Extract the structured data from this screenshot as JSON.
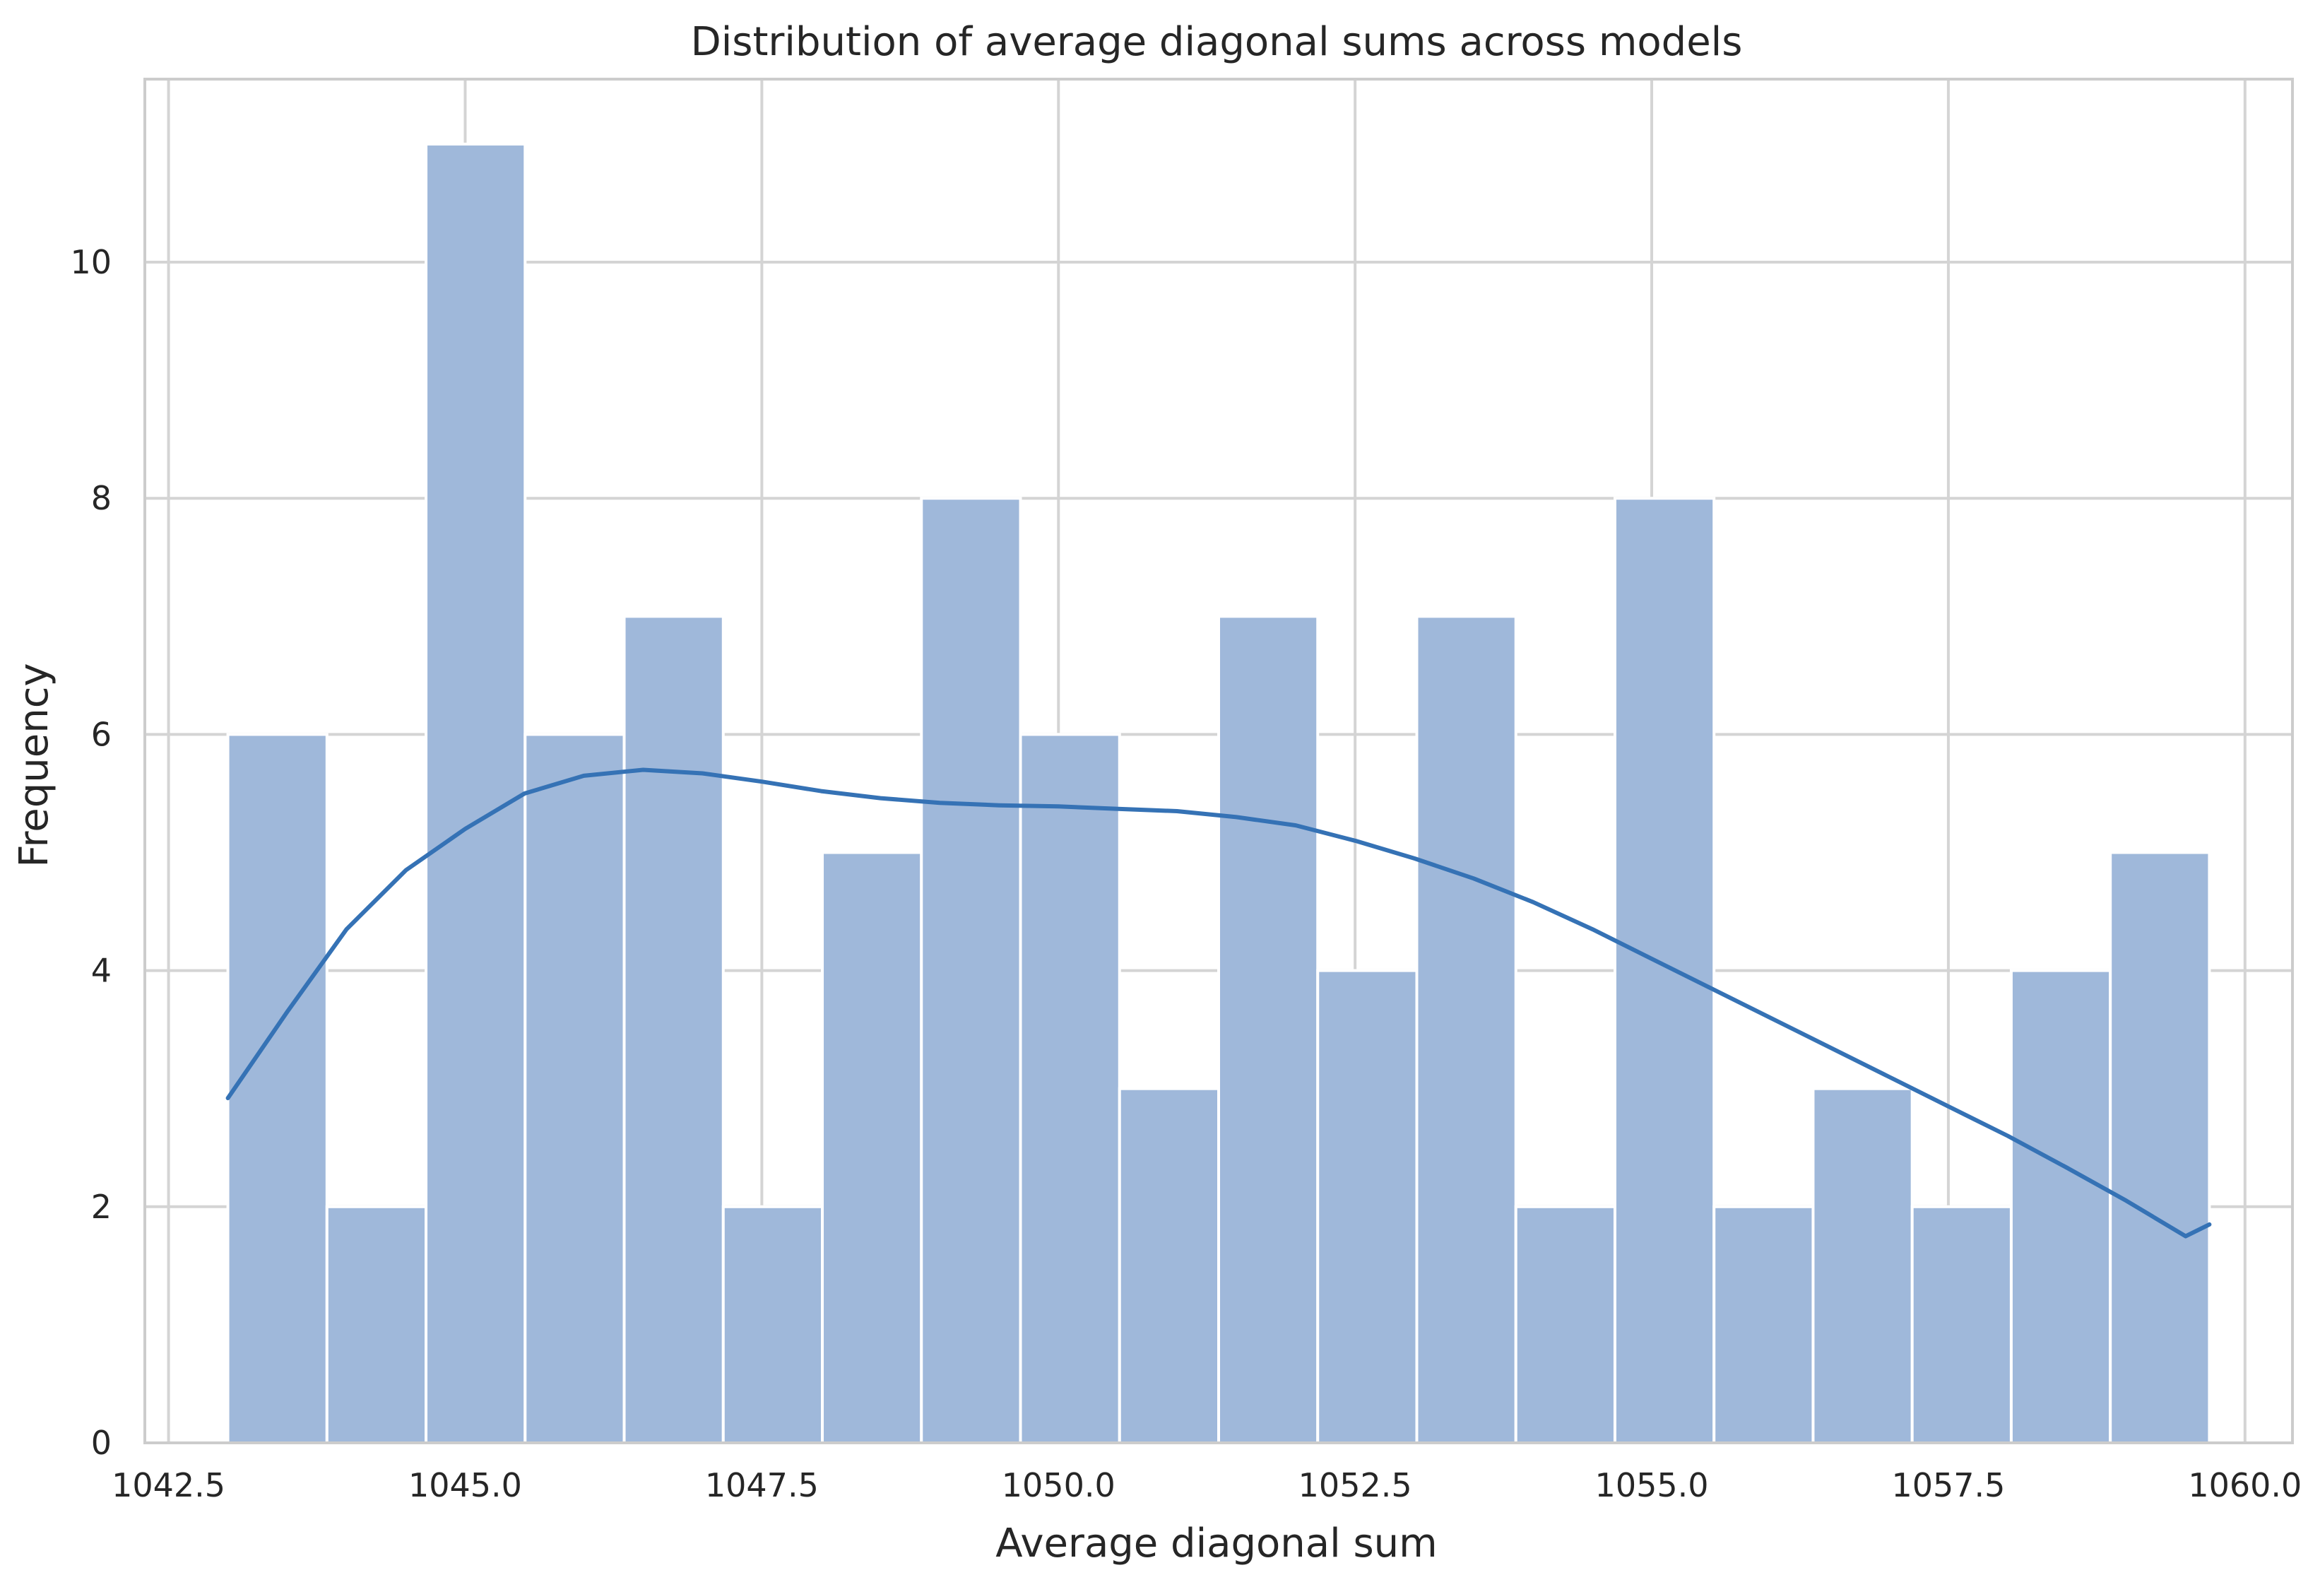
{
  "chart_data": {
    "type": "bar",
    "subtype": "histogram",
    "title": "Distribution of average diagonal sums across models",
    "xlabel": "Average diagonal sum",
    "ylabel": "Frequency",
    "xlim": [
      1042.3,
      1060.4
    ],
    "ylim": [
      0,
      11.55
    ],
    "xticks": [
      1042.5,
      1045.0,
      1047.5,
      1050.0,
      1052.5,
      1055.0,
      1057.5,
      1060.0
    ],
    "xtick_labels": [
      "1042.5",
      "1045.0",
      "1047.5",
      "1050.0",
      "1052.5",
      "1055.0",
      "1057.5",
      "1060.0"
    ],
    "yticks": [
      0,
      2,
      4,
      6,
      8,
      10
    ],
    "ytick_labels": [
      "0",
      "2",
      "4",
      "6",
      "8",
      "10"
    ],
    "grid": true,
    "bins": {
      "start": 1043.0,
      "end": 1059.7,
      "counts": [
        6,
        2,
        11,
        6,
        7,
        2,
        5,
        8,
        6,
        3,
        7,
        4,
        7,
        2,
        8,
        2,
        3,
        2,
        4,
        5
      ]
    },
    "kde": {
      "x": [
        1043.0,
        1043.5,
        1044.0,
        1044.5,
        1045.0,
        1045.5,
        1046.0,
        1046.5,
        1047.0,
        1047.5,
        1048.0,
        1048.5,
        1049.0,
        1049.5,
        1050.0,
        1050.5,
        1051.0,
        1051.5,
        1052.0,
        1052.5,
        1053.0,
        1053.5,
        1054.0,
        1054.5,
        1055.0,
        1055.5,
        1056.0,
        1056.5,
        1057.0,
        1057.5,
        1058.0,
        1058.5,
        1059.0,
        1059.5,
        1059.7
      ],
      "y": [
        2.92,
        3.65,
        4.35,
        4.85,
        5.2,
        5.5,
        5.65,
        5.7,
        5.67,
        5.6,
        5.52,
        5.46,
        5.42,
        5.4,
        5.39,
        5.37,
        5.35,
        5.3,
        5.23,
        5.1,
        4.95,
        4.78,
        4.58,
        4.35,
        4.1,
        3.85,
        3.6,
        3.35,
        3.1,
        2.85,
        2.6,
        2.33,
        2.05,
        1.75,
        1.85
      ]
    },
    "colors": {
      "bar": "#9fb8da",
      "kde": "#3572b5"
    }
  }
}
